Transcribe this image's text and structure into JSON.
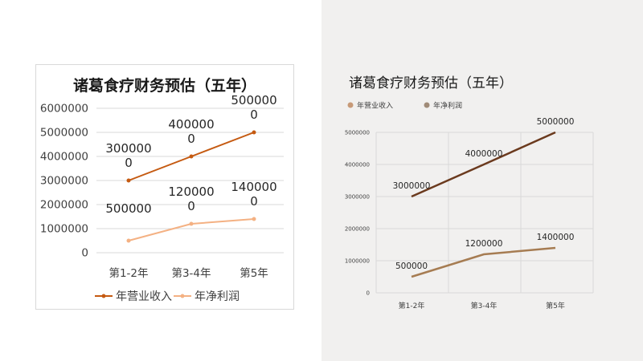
{
  "charts": [
    {
      "title": "诸葛食疗财务预估（五年）",
      "colors": {
        "revenue": "#c55a11",
        "profit": "#f4b183",
        "grid": "#d9d9d9",
        "text": "#404040"
      }
    },
    {
      "title": "诸葛食疗财务预估（五年）",
      "colors": {
        "revenue": "#6b3a1e",
        "profit": "#a67c52",
        "legend_revenue": "#c79a78",
        "legend_profit": "#a08b78",
        "grid": "#d9d9d9",
        "text": "#404040"
      }
    }
  ],
  "chart_data": [
    {
      "type": "line",
      "title": "诸葛食疗财务预估（五年）",
      "categories": [
        "第1-2年",
        "第3-4年",
        "第5年"
      ],
      "series": [
        {
          "name": "年营业收入",
          "values": [
            3000000,
            4000000,
            5000000
          ],
          "labels": [
            "300000\n0",
            "400000\n0",
            "500000\n0"
          ]
        },
        {
          "name": "年净利润",
          "values": [
            500000,
            1200000,
            1400000
          ],
          "labels": [
            "500000",
            "120000\n0",
            "140000\n0"
          ]
        }
      ],
      "yticks": [
        "0",
        "1000000",
        "2000000",
        "3000000",
        "4000000",
        "5000000",
        "6000000"
      ],
      "ylim": [
        0,
        6000000
      ],
      "grid": true,
      "legend": "bottom"
    },
    {
      "type": "line",
      "title": "诸葛食疗财务预估（五年）",
      "categories": [
        "第1-2年",
        "第3-4年",
        "第5年"
      ],
      "series": [
        {
          "name": "年营业收入",
          "values": [
            3000000,
            4000000,
            5000000
          ],
          "labels": [
            "3000000",
            "4000000",
            "5000000"
          ]
        },
        {
          "name": "年净利润",
          "values": [
            500000,
            1200000,
            1400000
          ],
          "labels": [
            "500000",
            "1200000",
            "1400000"
          ]
        }
      ],
      "yticks": [
        "0",
        "1000000",
        "2000000",
        "3000000",
        "4000000",
        "5000000"
      ],
      "ylim": [
        0,
        5000000
      ],
      "grid": true,
      "legend": "top-left"
    }
  ]
}
